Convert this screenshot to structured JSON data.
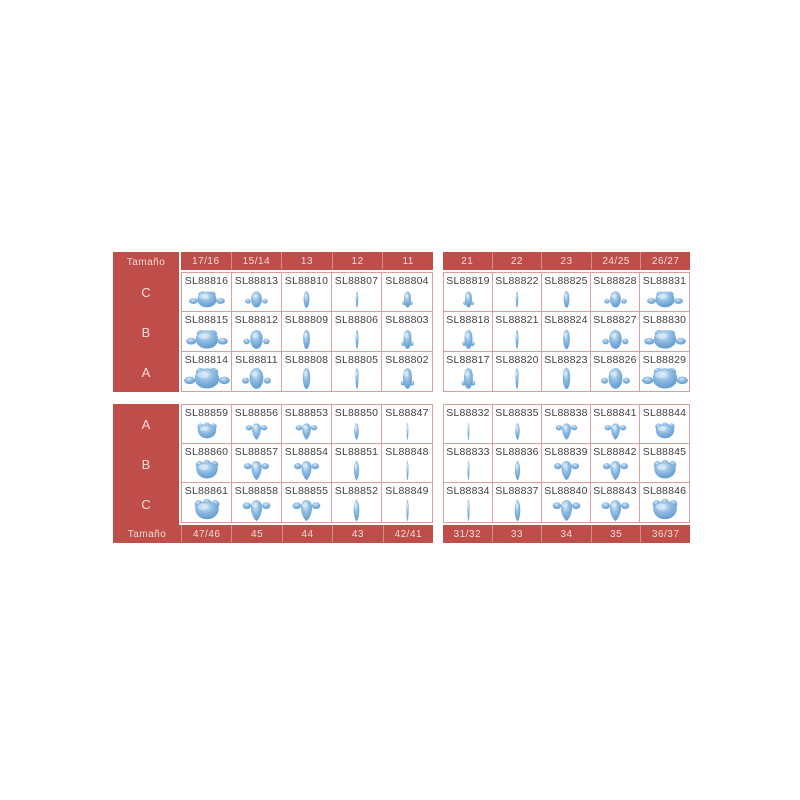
{
  "colors": {
    "brand_red": "#BF4D4A",
    "header_text": "#F5DCDA",
    "code_text": "#3F3F3F",
    "cell_border": "#DCA09C",
    "tooth_light": "#D4E7F7",
    "tooth_mid": "#8CBAE2",
    "tooth_dark": "#5B94C8"
  },
  "tables": [
    {
      "id": "upper-left",
      "size_label": "Tamaño",
      "columns": [
        {
          "size": "17/16",
          "tooth": "molar-upper"
        },
        {
          "size": "15/14",
          "tooth": "premolar-upper"
        },
        {
          "size": "13",
          "tooth": "canine-upper"
        },
        {
          "size": "12",
          "tooth": "incisor-upper"
        },
        {
          "size": "11",
          "tooth": "central-upper"
        }
      ],
      "rows": [
        {
          "label": "C",
          "codes": [
            "SL88816",
            "SL88813",
            "SL88810",
            "SL88807",
            "SL88804"
          ]
        },
        {
          "label": "B",
          "codes": [
            "SL88815",
            "SL88812",
            "SL88809",
            "SL88806",
            "SL88803"
          ]
        },
        {
          "label": "A",
          "codes": [
            "SL88814",
            "SL88811",
            "SL88808",
            "SL88805",
            "SL88802"
          ]
        }
      ]
    },
    {
      "id": "upper-right",
      "columns": [
        {
          "size": "21",
          "tooth": "central-upper"
        },
        {
          "size": "22",
          "tooth": "incisor-upper"
        },
        {
          "size": "23",
          "tooth": "canine-upper"
        },
        {
          "size": "24/25",
          "tooth": "premolar-upper"
        },
        {
          "size": "26/27",
          "tooth": "molar-upper"
        }
      ],
      "rows": [
        {
          "codes": [
            "SL88819",
            "SL88822",
            "SL88825",
            "SL88828",
            "SL88831"
          ]
        },
        {
          "codes": [
            "SL88818",
            "SL88821",
            "SL88824",
            "SL88827",
            "SL88830"
          ]
        },
        {
          "codes": [
            "SL88817",
            "SL88820",
            "SL88823",
            "SL88826",
            "SL88829"
          ]
        }
      ]
    },
    {
      "id": "lower-left",
      "size_label": "Tamaño",
      "columns": [
        {
          "size": "47/46",
          "tooth": "molar-lower"
        },
        {
          "size": "45",
          "tooth": "premolar-lower"
        },
        {
          "size": "44",
          "tooth": "premolar-lower"
        },
        {
          "size": "43",
          "tooth": "canine-lower"
        },
        {
          "size": "42/41",
          "tooth": "incisor-lower"
        }
      ],
      "rows": [
        {
          "label": "A",
          "codes": [
            "SL88859",
            "SL88856",
            "SL88853",
            "SL88850",
            "SL88847"
          ]
        },
        {
          "label": "B",
          "codes": [
            "SL88860",
            "SL88857",
            "SL88854",
            "SL88851",
            "SL88848"
          ]
        },
        {
          "label": "C",
          "codes": [
            "SL88861",
            "SL88858",
            "SL88855",
            "SL88852",
            "SL88849"
          ]
        }
      ]
    },
    {
      "id": "lower-right",
      "columns": [
        {
          "size": "31/32",
          "tooth": "incisor-lower"
        },
        {
          "size": "33",
          "tooth": "canine-lower"
        },
        {
          "size": "34",
          "tooth": "premolar-lower"
        },
        {
          "size": "35",
          "tooth": "premolar-lower"
        },
        {
          "size": "36/37",
          "tooth": "molar-lower"
        }
      ],
      "rows": [
        {
          "codes": [
            "SL88832",
            "SL88835",
            "SL88838",
            "SL88841",
            "SL88844"
          ]
        },
        {
          "codes": [
            "SL88833",
            "SL88836",
            "SL88839",
            "SL88842",
            "SL88845"
          ]
        },
        {
          "codes": [
            "SL88834",
            "SL88837",
            "SL88840",
            "SL88843",
            "SL88846"
          ]
        }
      ]
    }
  ]
}
